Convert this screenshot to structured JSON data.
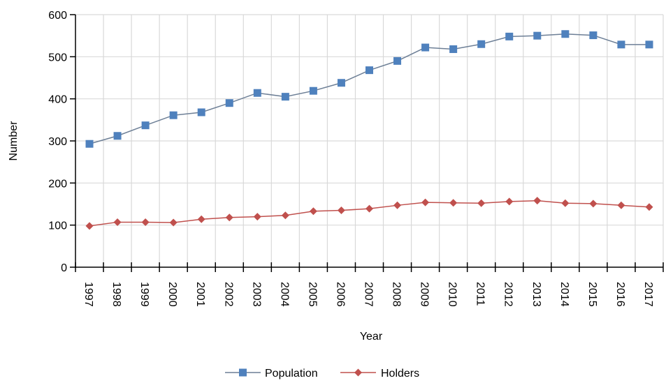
{
  "chart_data": {
    "type": "line",
    "title": "",
    "xlabel": "Year",
    "ylabel": "Number",
    "ylim": [
      0,
      600
    ],
    "yticks": [
      0,
      100,
      200,
      300,
      400,
      500,
      600
    ],
    "grid": true,
    "legend_position": "bottom-center",
    "x": [
      "1997",
      "1998",
      "1999",
      "2000",
      "2001",
      "2002",
      "2003",
      "2004",
      "2005",
      "2006",
      "2007",
      "2008",
      "2009",
      "2010",
      "2011",
      "2012",
      "2013",
      "2014",
      "2015",
      "2016",
      "2017"
    ],
    "series": [
      {
        "name": "Population",
        "color": "#4f81bd",
        "line_color": "#6d7f96",
        "marker": "square",
        "values": [
          293,
          312,
          337,
          361,
          368,
          390,
          414,
          405,
          419,
          438,
          468,
          490,
          522,
          518,
          530,
          548,
          550,
          554,
          551,
          529,
          529
        ]
      },
      {
        "name": "Holders",
        "color": "#c0504d",
        "line_color": "#c0504d",
        "marker": "diamond",
        "values": [
          98,
          107,
          107,
          106,
          114,
          118,
          120,
          123,
          133,
          135,
          139,
          147,
          154,
          153,
          152,
          156,
          158,
          152,
          151,
          147,
          143
        ]
      }
    ]
  }
}
